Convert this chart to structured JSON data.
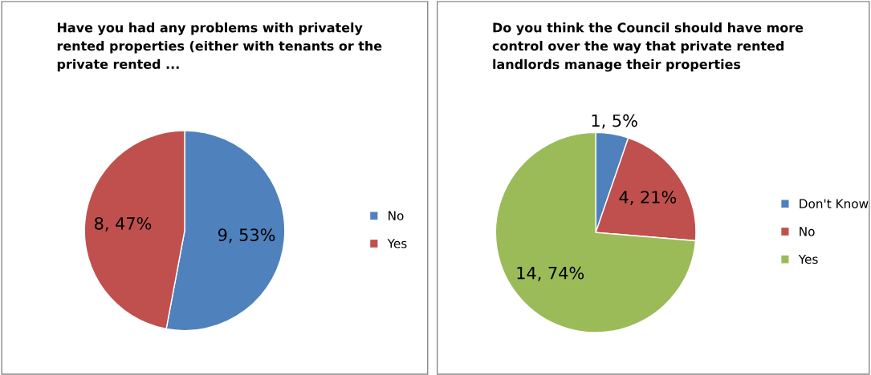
{
  "chart_data": [
    {
      "type": "pie",
      "title": "Have you had any problems with privately\nrented properties (either with tenants or the\nprivate rented ...",
      "categories": [
        "No",
        "Yes"
      ],
      "values": [
        9,
        8
      ],
      "colors": [
        "#4f81bd",
        "#c0504d"
      ],
      "value_labels": [
        "9, 53%",
        "8, 47%"
      ],
      "legend": "right"
    },
    {
      "type": "pie",
      "title": "Do you think the Council should have more\ncontrol over the way that private rented\nlandlords manage their properties",
      "categories": [
        "Don't Know",
        "No",
        "Yes"
      ],
      "values": [
        1,
        4,
        14
      ],
      "colors": [
        "#4f81bd",
        "#c0504d",
        "#9bbb59"
      ],
      "value_labels": [
        "1, 5%",
        "4, 21%",
        "14, 74%"
      ],
      "legend": "right"
    }
  ]
}
